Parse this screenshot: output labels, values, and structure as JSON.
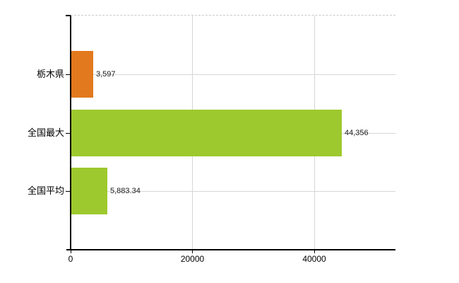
{
  "chart_data": {
    "type": "bar",
    "orientation": "horizontal",
    "title": "",
    "categories": [
      "栃木県",
      "全国最大",
      "全国平均"
    ],
    "values": [
      3597,
      44356,
      5883.34
    ],
    "value_labels": [
      "3,597",
      "44,356",
      "5,883.34"
    ],
    "bar_colors": [
      "#e2791e",
      "#9dc92e",
      "#9dc92e"
    ],
    "x_ticks": [
      0,
      20000,
      40000
    ],
    "x_tick_labels": [
      "0",
      "20000",
      "40000"
    ],
    "xlim": [
      0,
      53333
    ],
    "grid": true,
    "legend": false,
    "colors": {
      "axis": "#000000",
      "gridline": "#d6d6d6",
      "plot_border_top": "#c9c9c9",
      "background": "#ffffff",
      "text": "#000000"
    }
  }
}
